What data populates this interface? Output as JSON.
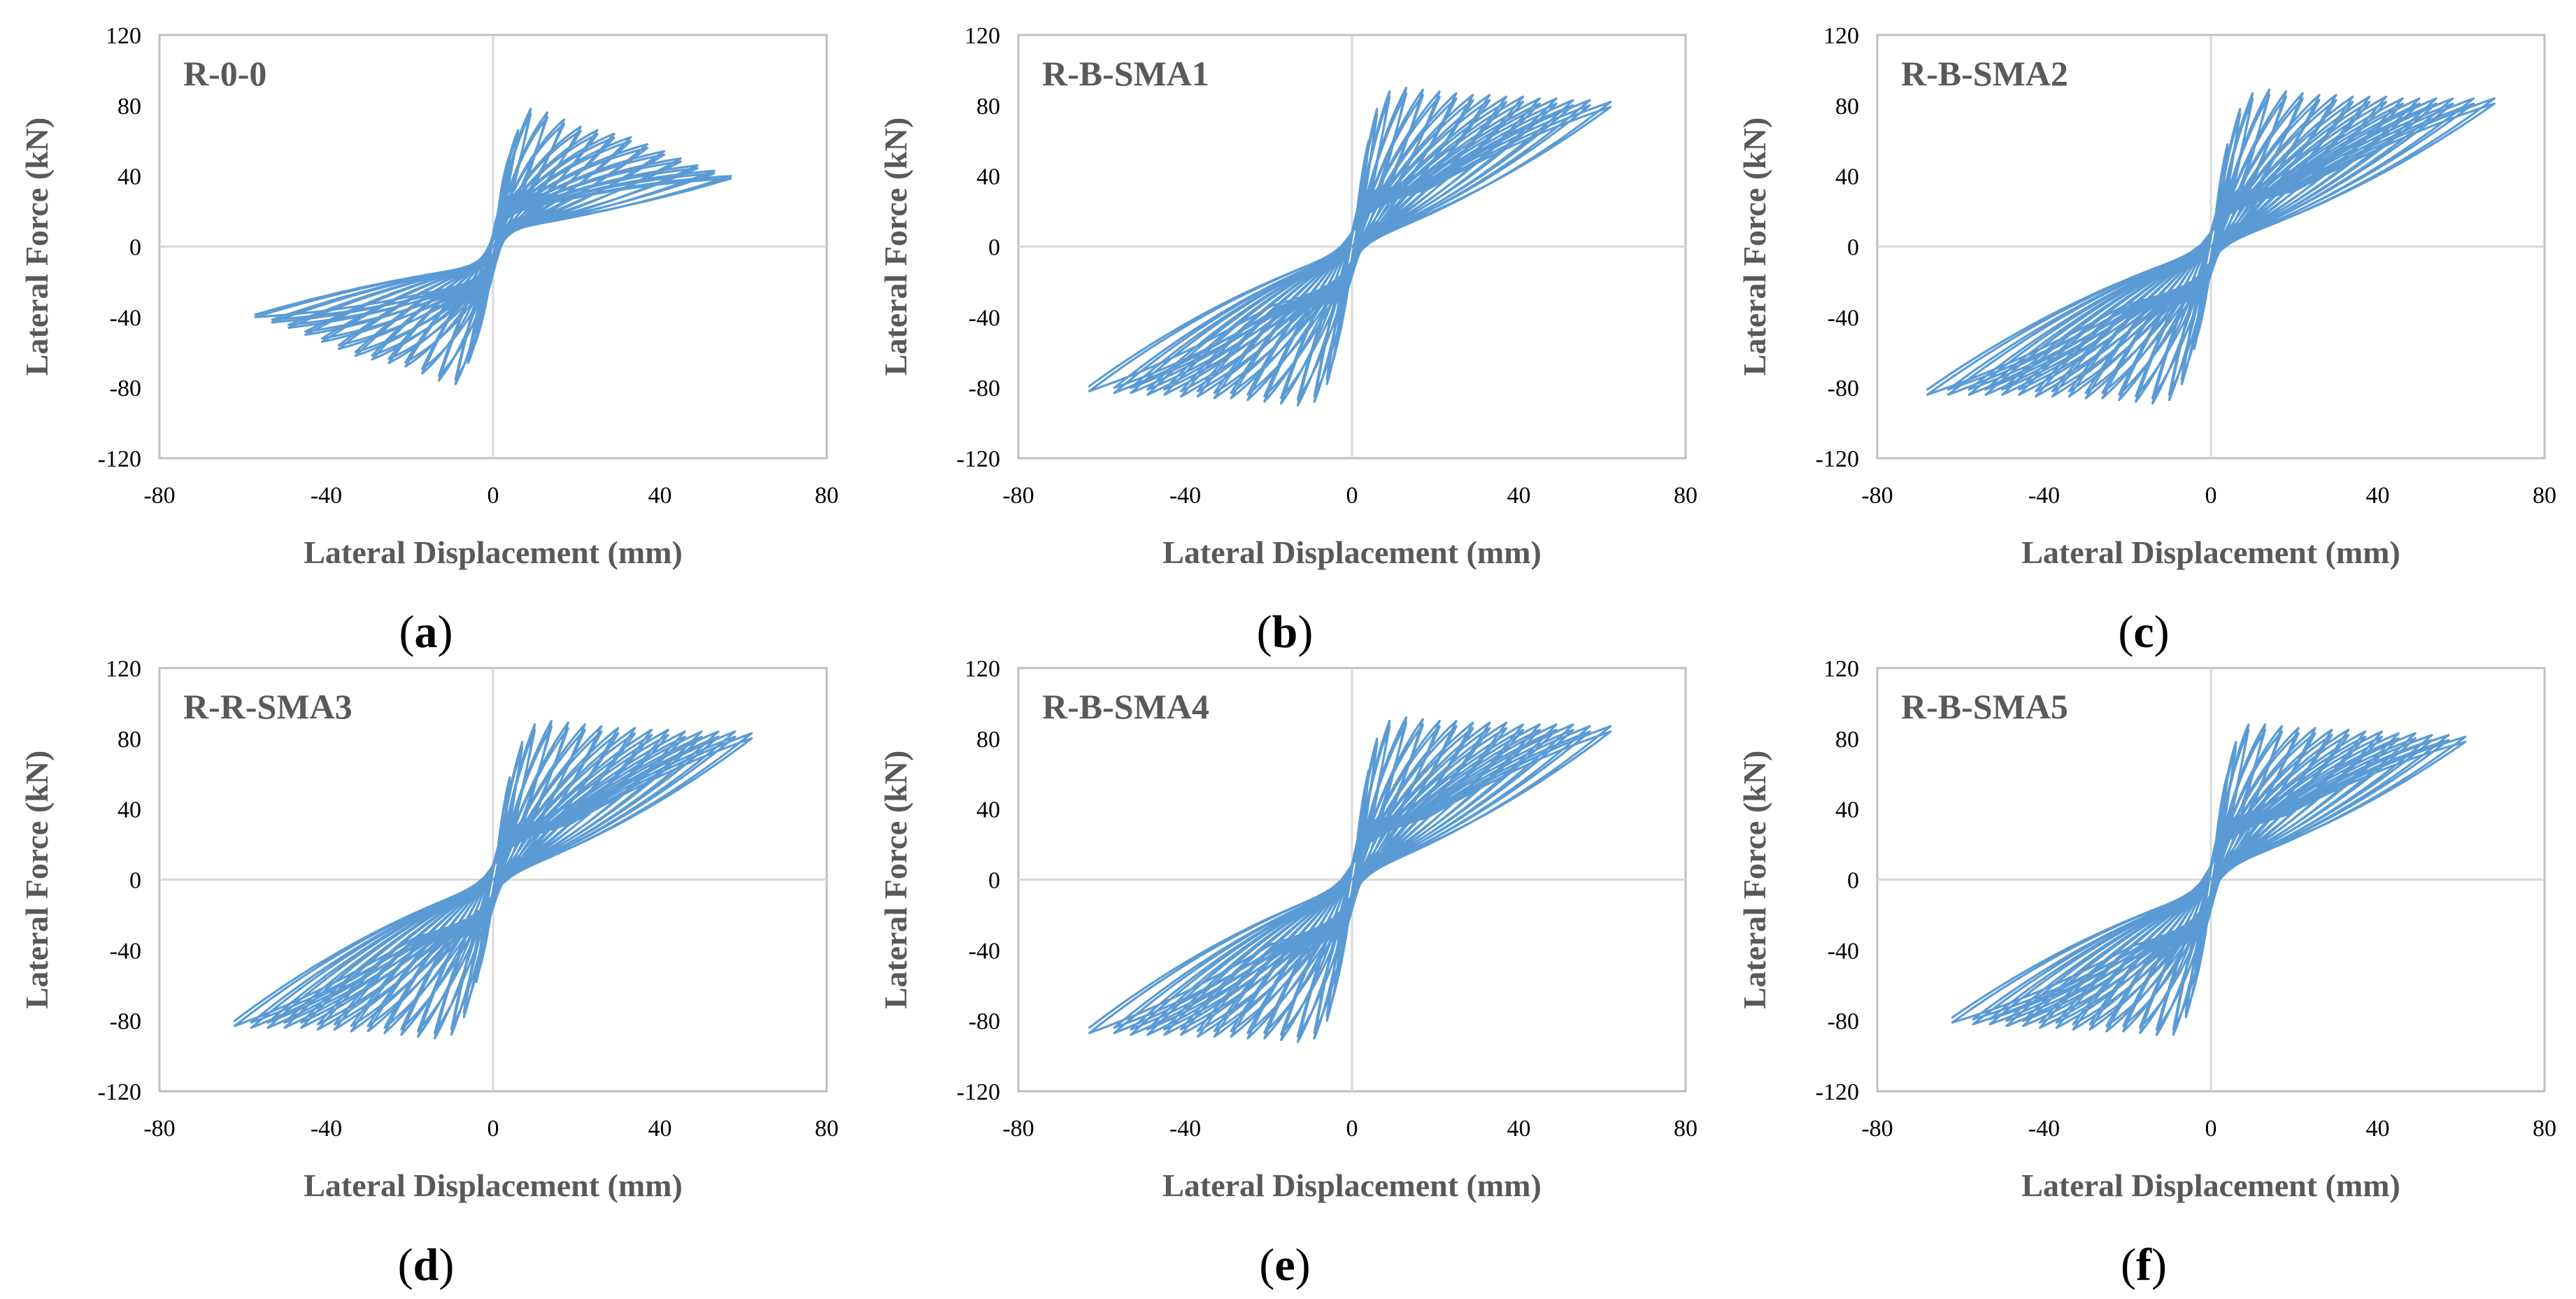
{
  "figure": {
    "curve_color": "#5b9bd5",
    "frame_color": "#bfbfbf",
    "zero_line_color": "#d9d9d9"
  },
  "chart_data": [
    {
      "type": "line",
      "panel": "a",
      "caption": "a",
      "title": "R-0-0",
      "xlabel": "Lateral Displacement (mm)",
      "ylabel": "Lateral Force (kN)",
      "xlim": [
        -80,
        80
      ],
      "ylim": [
        -120,
        120
      ],
      "xticks": [
        "-80",
        "-40",
        "0",
        "40",
        "80"
      ],
      "yticks": [
        "120",
        "80",
        "40",
        "0",
        "-40",
        "-80",
        "-120"
      ],
      "series": [
        {
          "name": "R-0-0",
          "amplitudes_mm": [
            4,
            6,
            9,
            13,
            17,
            21,
            25,
            29,
            33,
            37,
            41,
            45,
            49,
            53,
            57
          ],
          "peak_force_kN": [
            52,
            66,
            78,
            76,
            72,
            68,
            66,
            64,
            62,
            58,
            54,
            50,
            46,
            43,
            40
          ],
          "min_amplitudes_mm": [
            4,
            6,
            9,
            13,
            17,
            21,
            25,
            29,
            33,
            37,
            41,
            45,
            49,
            53,
            57
          ],
          "min_peak_force_kN": [
            52,
            66,
            78,
            76,
            72,
            68,
            66,
            64,
            62,
            58,
            54,
            50,
            46,
            43,
            40
          ],
          "initial_stiffness_kN_per_mm": 15,
          "pinch_force_kN": 30,
          "pinch_width_mm": 2.5
        }
      ]
    },
    {
      "type": "line",
      "panel": "b",
      "caption": "b",
      "title": "R-B-SMA1",
      "xlabel": "Lateral Displacement (mm)",
      "ylabel": "Lateral Force (kN)",
      "xlim": [
        -80,
        80
      ],
      "ylim": [
        -120,
        120
      ],
      "xticks": [
        "-80",
        "-40",
        "0",
        "40",
        "80"
      ],
      "yticks": [
        "120",
        "80",
        "40",
        "0",
        "-40",
        "-80",
        "-120"
      ],
      "series": [
        {
          "name": "R-B-SMA1",
          "amplitudes_mm": [
            4,
            6,
            9,
            13,
            17,
            21,
            25,
            29,
            33,
            37,
            41,
            45,
            49,
            53,
            57,
            62
          ],
          "peak_force_kN": [
            60,
            78,
            88,
            90,
            89,
            88,
            87,
            86,
            86,
            85,
            85,
            84,
            84,
            83,
            83,
            82
          ],
          "min_amplitudes_mm": [
            4,
            6,
            9,
            13,
            17,
            21,
            25,
            29,
            33,
            37,
            41,
            45,
            49,
            53,
            57,
            63
          ],
          "min_peak_force_kN": [
            60,
            78,
            88,
            90,
            89,
            88,
            87,
            86,
            86,
            85,
            85,
            84,
            84,
            83,
            83,
            82
          ],
          "initial_stiffness_kN_per_mm": 14,
          "pinch_force_kN": 22,
          "pinch_width_mm": 3
        }
      ]
    },
    {
      "type": "line",
      "panel": "c",
      "caption": "c",
      "title": "R-B-SMA2",
      "xlabel": "Lateral Displacement (mm)",
      "ylabel": "Lateral Force (kN)",
      "xlim": [
        -80,
        80
      ],
      "ylim": [
        -120,
        120
      ],
      "xticks": [
        "-80",
        "-40",
        "0",
        "40",
        "80"
      ],
      "yticks": [
        "120",
        "80",
        "40",
        "0",
        "-40",
        "-80",
        "-120"
      ],
      "series": [
        {
          "name": "R-B-SMA2",
          "amplitudes_mm": [
            4,
            7,
            10,
            14,
            18,
            22,
            26,
            30,
            34,
            38,
            42,
            46,
            50,
            54,
            58,
            63,
            68
          ],
          "peak_force_kN": [
            58,
            78,
            87,
            89,
            88,
            87,
            86,
            86,
            85,
            85,
            85,
            84,
            84,
            84,
            84,
            84,
            84
          ],
          "min_amplitudes_mm": [
            4,
            7,
            10,
            14,
            18,
            22,
            26,
            30,
            34,
            38,
            42,
            46,
            50,
            54,
            58,
            63,
            68
          ],
          "min_peak_force_kN": [
            58,
            78,
            87,
            89,
            88,
            87,
            86,
            86,
            85,
            85,
            85,
            84,
            84,
            84,
            84,
            84,
            84
          ],
          "initial_stiffness_kN_per_mm": 14,
          "pinch_force_kN": 20,
          "pinch_width_mm": 3
        }
      ]
    },
    {
      "type": "line",
      "panel": "d",
      "caption": "d",
      "title": "R-R-SMA3",
      "xlabel": "Lateral Displacement (mm)",
      "ylabel": "Lateral Force (kN)",
      "xlim": [
        -80,
        80
      ],
      "ylim": [
        -120,
        120
      ],
      "xticks": [
        "-80",
        "-40",
        "0",
        "40",
        "80"
      ],
      "yticks": [
        "120",
        "80",
        "40",
        "0",
        "-40",
        "-80",
        "-120"
      ],
      "series": [
        {
          "name": "R-R-SMA3",
          "amplitudes_mm": [
            4,
            7,
            10,
            14,
            18,
            22,
            26,
            30,
            34,
            38,
            42,
            46,
            50,
            54,
            58,
            62
          ],
          "peak_force_kN": [
            58,
            78,
            88,
            90,
            89,
            88,
            87,
            86,
            86,
            85,
            85,
            84,
            84,
            84,
            84,
            83
          ],
          "min_amplitudes_mm": [
            4,
            7,
            10,
            14,
            18,
            22,
            26,
            30,
            34,
            38,
            42,
            46,
            50,
            54,
            58,
            62
          ],
          "min_peak_force_kN": [
            58,
            78,
            88,
            90,
            89,
            88,
            87,
            86,
            86,
            85,
            85,
            84,
            84,
            84,
            84,
            83
          ],
          "initial_stiffness_kN_per_mm": 14,
          "pinch_force_kN": 20,
          "pinch_width_mm": 3
        }
      ]
    },
    {
      "type": "line",
      "panel": "e",
      "caption": "e",
      "title": "R-B-SMA4",
      "xlabel": "Lateral Displacement (mm)",
      "ylabel": "Lateral Force (kN)",
      "xlim": [
        -80,
        80
      ],
      "ylim": [
        -120,
        120
      ],
      "xticks": [
        "-80",
        "-40",
        "0",
        "40",
        "80"
      ],
      "yticks": [
        "120",
        "80",
        "40",
        "0",
        "-40",
        "-80",
        "-120"
      ],
      "series": [
        {
          "name": "R-B-SMA4",
          "amplitudes_mm": [
            4,
            6,
            9,
            13,
            17,
            21,
            25,
            29,
            33,
            37,
            41,
            45,
            49,
            53,
            57,
            62
          ],
          "peak_force_kN": [
            62,
            80,
            90,
            92,
            91,
            90,
            90,
            89,
            89,
            89,
            88,
            88,
            88,
            88,
            87,
            87
          ],
          "min_amplitudes_mm": [
            4,
            6,
            9,
            13,
            17,
            21,
            25,
            29,
            33,
            37,
            41,
            45,
            49,
            53,
            57,
            63
          ],
          "min_peak_force_kN": [
            62,
            80,
            90,
            92,
            91,
            90,
            90,
            89,
            89,
            89,
            88,
            88,
            88,
            88,
            87,
            87
          ],
          "initial_stiffness_kN_per_mm": 15,
          "pinch_force_kN": 25,
          "pinch_width_mm": 3
        }
      ]
    },
    {
      "type": "line",
      "panel": "f",
      "caption": "f",
      "title": "R-B-SMA5",
      "xlabel": "Lateral Displacement (mm)",
      "ylabel": "Lateral Force (kN)",
      "xlim": [
        -80,
        80
      ],
      "ylim": [
        -120,
        120
      ],
      "xticks": [
        "-80",
        "-40",
        "0",
        "40",
        "80"
      ],
      "yticks": [
        "120",
        "80",
        "40",
        "0",
        "-40",
        "-80",
        "-120"
      ],
      "series": [
        {
          "name": "R-B-SMA5",
          "amplitudes_mm": [
            4,
            6,
            9,
            13,
            17,
            21,
            25,
            29,
            33,
            37,
            41,
            45,
            49,
            53,
            57,
            61
          ],
          "peak_force_kN": [
            60,
            78,
            88,
            88,
            87,
            86,
            86,
            85,
            85,
            84,
            84,
            83,
            83,
            82,
            82,
            81
          ],
          "min_amplitudes_mm": [
            4,
            6,
            9,
            13,
            17,
            21,
            25,
            29,
            33,
            37,
            41,
            45,
            49,
            53,
            57,
            62
          ],
          "min_peak_force_kN": [
            60,
            78,
            88,
            88,
            87,
            86,
            86,
            85,
            85,
            84,
            84,
            83,
            83,
            82,
            82,
            81
          ],
          "initial_stiffness_kN_per_mm": 14,
          "pinch_force_kN": 30,
          "pinch_width_mm": 3
        }
      ]
    }
  ]
}
